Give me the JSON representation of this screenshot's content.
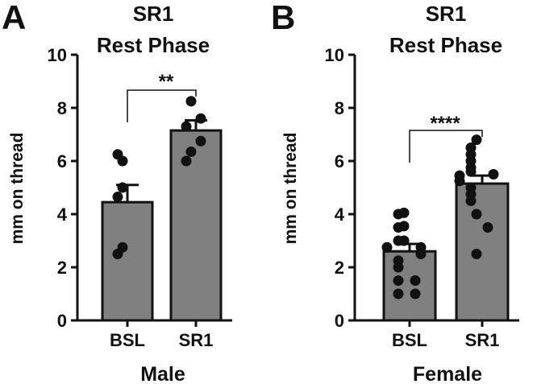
{
  "chart_data": [
    {
      "type": "bar",
      "panel_label": "A",
      "title_line1": "SR1",
      "title_line2": "Rest Phase",
      "ylabel": "mm on thread",
      "xlabel": "Male",
      "ylim": [
        0,
        10
      ],
      "yticks": [
        0,
        2,
        4,
        6,
        8,
        10
      ],
      "categories": [
        "BSL",
        "SR1"
      ],
      "values": [
        4.45,
        7.15
      ],
      "errors": [
        0.65,
        0.38
      ],
      "points": [
        [
          6.0,
          6.25,
          5.0,
          4.65,
          2.75,
          2.5
        ],
        [
          8.25,
          7.6,
          7.3,
          6.75,
          6.35,
          6.0
        ]
      ],
      "significance": "**",
      "bar_color": "#808080"
    },
    {
      "type": "bar",
      "panel_label": "B",
      "title_line1": "SR1",
      "title_line2": "Rest Phase",
      "ylabel": "mm on thread",
      "xlabel": "Female",
      "ylim": [
        0,
        10
      ],
      "yticks": [
        0,
        2,
        4,
        6,
        8,
        10
      ],
      "categories": [
        "BSL",
        "SR1"
      ],
      "values": [
        2.6,
        5.15
      ],
      "errors": [
        0.28,
        0.3
      ],
      "points": [
        [
          4.05,
          4.0,
          3.55,
          3.5,
          3.0,
          3.0,
          2.75,
          2.75,
          2.5,
          2.25,
          2.0,
          1.5,
          1.5,
          1.0,
          1.0
        ],
        [
          6.8,
          6.5,
          6.25,
          6.0,
          5.75,
          5.6,
          5.5,
          5.45,
          5.25,
          5.0,
          4.75,
          4.5,
          4.0,
          3.5,
          2.5
        ]
      ],
      "significance": "****",
      "bar_color": "#808080"
    }
  ]
}
